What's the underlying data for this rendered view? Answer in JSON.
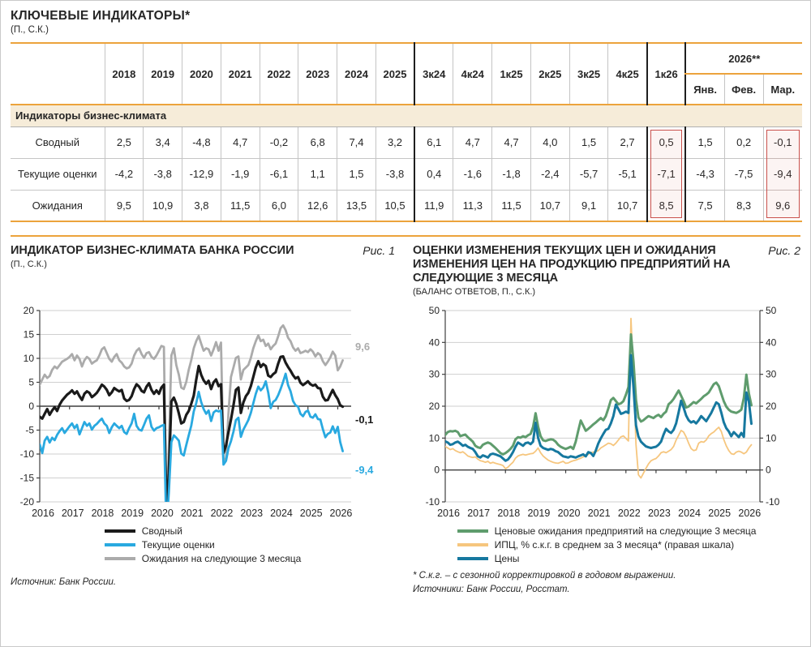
{
  "page": {
    "title": "КЛЮЧЕВЫЕ ИНДИКАТОРЫ*",
    "subtitle": "(П., С.К.)"
  },
  "table": {
    "section_header": "Индикаторы бизнес-климата",
    "group_2026_label": "2026**",
    "columns": [
      "2018",
      "2019",
      "2020",
      "2021",
      "2022",
      "2023",
      "2024",
      "2025",
      "3к24",
      "4к24",
      "1к25",
      "2к25",
      "3к25",
      "4к25",
      "1к26",
      "Янв.",
      "Фев.",
      "Мар."
    ],
    "rows": [
      {
        "label": "Сводный",
        "values": [
          "2,5",
          "3,4",
          "-4,8",
          "4,7",
          "-0,2",
          "6,8",
          "7,4",
          "3,2",
          "6,1",
          "4,7",
          "4,7",
          "4,0",
          "1,5",
          "2,7",
          "0,5",
          "1,5",
          "0,2",
          "-0,1"
        ]
      },
      {
        "label": "Текущие оценки",
        "values": [
          "-4,2",
          "-3,8",
          "-12,9",
          "-1,9",
          "-6,1",
          "1,1",
          "1,5",
          "-3,8",
          "0,4",
          "-1,6",
          "-1,8",
          "-2,4",
          "-5,7",
          "-5,1",
          "-7,1",
          "-4,3",
          "-7,5",
          "-9,4"
        ]
      },
      {
        "label": "Ожидания",
        "values": [
          "9,5",
          "10,9",
          "3,8",
          "11,5",
          "6,0",
          "12,6",
          "13,5",
          "10,5",
          "11,9",
          "11,3",
          "11,5",
          "10,7",
          "9,1",
          "10,7",
          "8,5",
          "7,5",
          "8,3",
          "9,6"
        ]
      }
    ],
    "highlight_color": "#c9504c",
    "accent_color": "#eca33c"
  },
  "figure1": {
    "title": "ИНДИКАТОР БИЗНЕС-КЛИМАТА БАНКА РОССИИ",
    "fig_label": "Рис. 1",
    "subtitle": "(П., С.К.)",
    "source": "Источник: Банк России."
  },
  "figure2": {
    "title": "ОЦЕНКИ ИЗМЕНЕНИЯ ТЕКУЩИХ ЦЕН И ОЖИДАНИЯ ИЗМЕНЕНИЯ ЦЕН НА ПРОДУКЦИЮ ПРЕДПРИЯТИЙ НА СЛЕДУЮЩИЕ 3 МЕСЯЦА",
    "fig_label": "Рис. 2",
    "subtitle": "(БАЛАНС ОТВЕТОВ, П., С.К.)",
    "footnote": "* С.к.г. – с сезонной корректировкой в годовом выражении.",
    "source": "Источники: Банк России, Росстат."
  },
  "chart_data": [
    {
      "type": "line",
      "title": "ИНДИКАТОР БИЗНЕС-КЛИМАТА БАНКА РОССИИ",
      "xlabel": "",
      "ylabel": "",
      "x_start": 2016,
      "x_step": 0.0833333,
      "xmin": 2016,
      "xmax": 2026.45,
      "ylim": [
        -20,
        20
      ],
      "yticks": [
        20,
        15,
        10,
        5,
        0,
        -5,
        -10,
        -15,
        -20
      ],
      "xticks": [
        2016,
        2017,
        2018,
        2019,
        2020,
        2021,
        2022,
        2023,
        2024,
        2025,
        2026
      ],
      "grid": true,
      "legend_position": "bottom",
      "right_axis": false,
      "draw_order": [
        2,
        0,
        1
      ],
      "series": [
        {
          "name": "Сводный",
          "color": "#1a1a1a",
          "width": 3.2,
          "values": [
            -2.2,
            -2.6,
            -1.6,
            -0.6,
            -1.8,
            -0.9,
            -0.2,
            -1.0,
            0.3,
            1.2,
            1.8,
            2.4,
            2.8,
            3.3,
            2.6,
            3.1,
            2.1,
            1.3,
            2.6,
            3.1,
            2.8,
            1.9,
            2.3,
            2.8,
            3.6,
            4.5,
            4.1,
            3.4,
            2.3,
            2.9,
            3.8,
            3.4,
            3.1,
            3.4,
            1.6,
            1.1,
            1.3,
            2.1,
            3.6,
            4.6,
            4.1,
            3.2,
            2.9,
            4.1,
            4.8,
            3.4,
            2.6,
            3.3,
            2.6,
            3.9,
            4.5,
            -22,
            -14,
            1.0,
            1.8,
            0.5,
            -1.5,
            -3.6,
            -3.3,
            -1.8,
            -1.0,
            0.5,
            2.2,
            5.5,
            8.4,
            6.6,
            5.4,
            4.7,
            5.3,
            3.6,
            5.0,
            5.6,
            4.2,
            4.6,
            -9.8,
            -8.2,
            -5.4,
            -2.8,
            0.2,
            3.4,
            3.9,
            -1.4,
            0.8,
            2.1,
            2.8,
            4.2,
            6.1,
            8.1,
            9.4,
            8.2,
            8.8,
            8.4,
            6.4,
            6.1,
            6.7,
            7.1,
            8.9,
            10.3,
            10.4,
            9.1,
            8.2,
            7.4,
            6.5,
            5.8,
            6.1,
            4.9,
            4.4,
            4.8,
            5.2,
            4.6,
            4.3,
            4.5,
            3.8,
            3.7,
            2.0,
            1.2,
            1.3,
            2.4,
            3.4,
            2.3,
            1.5,
            0.2,
            -0.1
          ]
        },
        {
          "name": "Текущие оценки",
          "color": "#29a9e0",
          "width": 2.8,
          "values": [
            -8.0,
            -9.8,
            -7.2,
            -6.4,
            -7.6,
            -6.6,
            -7.1,
            -6.0,
            -5.2,
            -4.6,
            -5.6,
            -4.9,
            -4.2,
            -3.6,
            -4.6,
            -3.9,
            -5.9,
            -4.6,
            -3.3,
            -4.1,
            -3.6,
            -4.9,
            -4.1,
            -3.7,
            -3.1,
            -2.6,
            -3.6,
            -4.1,
            -5.6,
            -4.4,
            -3.6,
            -4.1,
            -4.6,
            -4.1,
            -5.4,
            -5.8,
            -4.6,
            -3.6,
            -1.6,
            -4.1,
            -4.9,
            -5.1,
            -3.9,
            -2.6,
            -1.9,
            -4.3,
            -5.1,
            -4.6,
            -4.4,
            -4.1,
            -3.9,
            -26,
            -18,
            -7.5,
            -6.1,
            -6.6,
            -7.2,
            -9.9,
            -10.3,
            -8.1,
            -6.1,
            -4.1,
            -1.1,
            0.6,
            3.0,
            0.9,
            -0.6,
            -1.6,
            -0.9,
            -3.1,
            -1.3,
            -0.9,
            -1.1,
            -0.9,
            -12.2,
            -11.4,
            -8.8,
            -7.3,
            -5.3,
            -2.9,
            -2.4,
            -6.4,
            -4.9,
            -3.9,
            -2.9,
            -1.4,
            0.6,
            2.6,
            4.1,
            3.3,
            3.9,
            5.2,
            2.9,
            -0.4,
            0.9,
            1.3,
            2.3,
            3.6,
            5.1,
            6.8,
            4.4,
            3.1,
            1.1,
            0.2,
            -0.1,
            -1.6,
            -2.1,
            -1.2,
            -0.9,
            -2.2,
            -2.4,
            -1.7,
            -2.7,
            -2.8,
            -4.8,
            -6.5,
            -5.8,
            -5.5,
            -4.2,
            -5.6,
            -4.3,
            -7.5,
            -9.4
          ]
        },
        {
          "name": "Ожидания на следующие 3 месяца",
          "color": "#ababab",
          "width": 2.8,
          "values": [
            4.5,
            5.6,
            6.6,
            5.9,
            6.3,
            7.6,
            8.3,
            7.9,
            8.6,
            9.3,
            9.6,
            9.9,
            10.3,
            10.9,
            9.6,
            10.6,
            9.9,
            8.3,
            9.6,
            10.3,
            9.9,
            8.9,
            9.3,
            9.6,
            10.6,
            11.9,
            12.3,
            11.1,
            9.9,
            9.3,
            10.3,
            10.9,
            9.6,
            9.1,
            8.3,
            7.9,
            8.1,
            8.9,
            10.6,
            11.6,
            12.1,
            10.9,
            10.1,
            11.1,
            11.3,
            10.3,
            9.9,
            10.6,
            11.6,
            12.6,
            12.4,
            -24,
            -9.0,
            10.6,
            12.1,
            8.6,
            6.6,
            3.9,
            3.6,
            5.1,
            7.6,
            9.6,
            12.1,
            13.6,
            14.7,
            13.1,
            11.6,
            12.1,
            11.9,
            10.6,
            11.9,
            13.4,
            11.6,
            13.3,
            -11.2,
            -10.9,
            -1.5,
            6.1,
            8.1,
            10.1,
            10.4,
            5.6,
            7.6,
            8.1,
            8.6,
            10.1,
            12.1,
            13.6,
            14.8,
            13.6,
            13.9,
            12.6,
            13.1,
            11.9,
            12.6,
            13.1,
            14.6,
            16.3,
            16.9,
            15.9,
            14.3,
            13.6,
            12.3,
            11.6,
            12.1,
            11.1,
            11.3,
            11.6,
            11.3,
            11.9,
            11.4,
            10.4,
            11.1,
            10.7,
            9.4,
            8.6,
            9.3,
            10.2,
            11.4,
            10.6,
            7.5,
            8.3,
            9.6
          ]
        }
      ],
      "end_labels": [
        {
          "text": "9,6",
          "y": 12.4,
          "color": "#ababab"
        },
        {
          "text": "-0,1",
          "y": -2.9,
          "color": "#1a1a1a"
        },
        {
          "text": "-9,4",
          "y": -13.4,
          "color": "#29a9e0"
        }
      ]
    },
    {
      "type": "line",
      "title": "ОЦЕНКИ ИЗМЕНЕНИЯ ТЕКУЩИХ ЦЕН И ОЖИДАНИЯ ИЗМЕНЕНИЯ ЦЕН НА ПРОДУКЦИЮ ПРЕДПРИЯТИЙ НА СЛЕДУЮЩИЕ 3 МЕСЯЦА",
      "xlabel": "",
      "ylabel": "",
      "x_start": 2016,
      "x_step": 0.0833333,
      "xmin": 2016,
      "xmax": 2026.45,
      "ylim": [
        -10,
        50
      ],
      "yticks": [
        50,
        40,
        30,
        20,
        10,
        0,
        -10
      ],
      "xticks": [
        2016,
        2017,
        2018,
        2019,
        2020,
        2021,
        2022,
        2023,
        2024,
        2025,
        2026
      ],
      "grid": true,
      "legend_position": "bottom",
      "right_axis": true,
      "draw_order": [
        1,
        0,
        2
      ],
      "series": [
        {
          "name": "Ценовые ожидания предприятий на следующие 3 месяца",
          "color": "#5f9c6d",
          "width": 3,
          "values": [
            11.0,
            11.9,
            12.2,
            12.1,
            12.3,
            11.9,
            10.6,
            10.9,
            11.1,
            10.3,
            9.6,
            8.9,
            7.6,
            7.1,
            6.9,
            7.9,
            8.3,
            8.6,
            8.3,
            7.6,
            6.9,
            6.1,
            5.3,
            4.9,
            5.3,
            5.9,
            6.6,
            7.6,
            9.6,
            10.3,
            10.1,
            10.6,
            10.3,
            10.9,
            11.3,
            13.5,
            17.8,
            13.6,
            10.6,
            9.3,
            9.1,
            9.4,
            9.6,
            9.5,
            8.9,
            7.9,
            7.3,
            6.9,
            6.6,
            6.9,
            7.3,
            6.6,
            8.9,
            12.3,
            15.5,
            13.9,
            12.3,
            12.9,
            13.6,
            14.3,
            14.9,
            15.6,
            16.3,
            15.6,
            16.9,
            19.3,
            21.9,
            22.6,
            21.6,
            20.6,
            20.9,
            21.6,
            23.6,
            26.0,
            42.5,
            34.0,
            22.0,
            16.5,
            15.2,
            15.6,
            16.3,
            16.9,
            16.6,
            16.3,
            16.9,
            17.3,
            16.6,
            17.6,
            18.3,
            20.6,
            21.3,
            22.3,
            23.6,
            24.9,
            23.3,
            21.6,
            19.6,
            19.9,
            20.6,
            21.3,
            20.9,
            21.6,
            22.3,
            23.1,
            23.6,
            24.3,
            25.6,
            26.9,
            27.4,
            26.3,
            23.9,
            21.6,
            19.9,
            18.9,
            18.3,
            18.1,
            17.9,
            18.3,
            18.9,
            22.6,
            29.9,
            24.0,
            20.3
          ]
        },
        {
          "name": "ИПЦ, % с.к.г. в среднем за 3 месяца* (правая шкала)",
          "color": "#f6c67e",
          "width": 1.8,
          "values": [
            7.4,
            6.9,
            6.4,
            6.7,
            6.1,
            5.7,
            5.4,
            5.7,
            5.1,
            4.4,
            4.1,
            3.9,
            4.1,
            3.4,
            2.9,
            2.7,
            2.4,
            2.7,
            2.1,
            2.4,
            2.1,
            1.9,
            1.7,
            1.4,
            0.4,
            0.9,
            1.7,
            2.4,
            3.7,
            4.4,
            4.7,
            4.9,
            4.7,
            4.9,
            5.1,
            5.2,
            5.9,
            6.9,
            5.4,
            4.4,
            3.7,
            3.1,
            2.7,
            2.4,
            2.2,
            2.1,
            2.4,
            2.7,
            2.1,
            2.2,
            2.6,
            2.9,
            3.1,
            3.4,
            3.7,
            4.1,
            4.4,
            4.9,
            5.4,
            5.6,
            5.7,
            6.1,
            6.9,
            7.4,
            7.9,
            8.4,
            8.2,
            7.7,
            8.4,
            9.4,
            10.4,
            10.7,
            9.9,
            9.1,
            47.5,
            30.0,
            8.0,
            -1.5,
            -2.5,
            -1.0,
            0.5,
            1.9,
            2.9,
            3.3,
            3.6,
            4.4,
            5.4,
            5.7,
            5.4,
            5.9,
            6.4,
            7.4,
            9.4,
            10.9,
            12.4,
            11.9,
            10.4,
            8.4,
            6.7,
            6.1,
            6.3,
            8.4,
            8.9,
            8.7,
            9.4,
            10.7,
            11.4,
            11.9,
            12.7,
            13.4,
            12.1,
            9.6,
            7.6,
            6.1,
            5.1,
            4.9,
            5.6,
            5.9,
            5.6,
            5.1,
            5.6,
            6.9,
            7.9
          ]
        },
        {
          "name": "Цены",
          "color": "#16789f",
          "width": 3,
          "values": [
            9.0,
            8.6,
            7.9,
            8.1,
            8.6,
            8.9,
            8.3,
            7.6,
            7.9,
            7.3,
            6.9,
            6.6,
            5.6,
            4.3,
            3.9,
            4.6,
            4.3,
            3.9,
            4.9,
            5.1,
            4.9,
            4.6,
            4.3,
            3.6,
            2.9,
            3.3,
            4.3,
            5.6,
            7.3,
            8.6,
            8.1,
            7.6,
            8.4,
            8.6,
            8.1,
            8.9,
            14.8,
            10.1,
            7.6,
            6.9,
            6.6,
            6.3,
            6.6,
            6.4,
            5.9,
            5.6,
            4.9,
            4.3,
            4.1,
            3.9,
            4.3,
            4.1,
            3.9,
            4.3,
            4.6,
            4.9,
            4.3,
            5.6,
            5.3,
            4.4,
            6.1,
            8.3,
            9.9,
            11.3,
            12.6,
            12.9,
            14.6,
            16.9,
            20.5,
            19.1,
            17.6,
            17.9,
            18.3,
            17.9,
            36.0,
            26.0,
            14.0,
            10.5,
            8.9,
            8.1,
            7.4,
            7.1,
            6.9,
            7.1,
            7.3,
            7.9,
            8.9,
            11.1,
            12.9,
            12.1,
            11.6,
            12.6,
            14.6,
            18.1,
            21.7,
            19.6,
            17.1,
            15.6,
            14.9,
            15.3,
            14.6,
            15.6,
            16.9,
            16.1,
            15.3,
            16.6,
            17.9,
            19.6,
            21.2,
            20.6,
            18.0,
            15.0,
            13.1,
            12.1,
            10.6,
            11.9,
            11.1,
            10.3,
            11.6,
            10.4,
            24.3,
            21.5,
            14.5
          ]
        }
      ],
      "end_labels": []
    }
  ]
}
